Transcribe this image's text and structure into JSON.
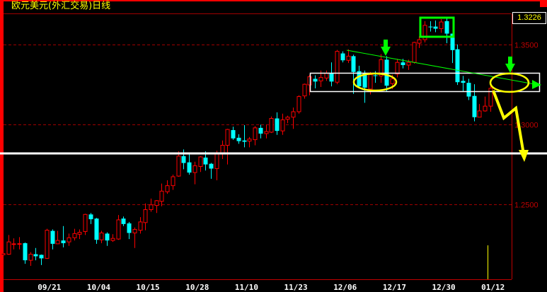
{
  "header": {
    "title": "欧元美元(外汇交易)日线",
    "last_price": "1.3226"
  },
  "colors": {
    "up": "#ff0000",
    "down": "#00ffff",
    "grid": "#a00000",
    "axis": "#c00000",
    "background": "#000000"
  },
  "chart_data": {
    "type": "candlestick",
    "title": "欧元美元(外汇交易)日线",
    "ylim": [
      1.203,
      1.369
    ],
    "y_ticks": [
      "1.3500",
      "1.3000",
      "1.2500"
    ],
    "y_tick_values": [
      1.35,
      1.3,
      1.25
    ],
    "grid": "horizontal dashed",
    "x_ticks": [
      "09/21",
      "10/04",
      "10/15",
      "10/28",
      "11/10",
      "11/23",
      "12/06",
      "12/17",
      "12/30",
      "01/12"
    ],
    "last_price": 1.3226,
    "ohlc": [
      [
        1.2183,
        1.2204,
        1.2149,
        1.2191
      ],
      [
        1.2187,
        1.2307,
        1.2183,
        1.2264
      ],
      [
        1.225,
        1.2286,
        1.2217,
        1.2252
      ],
      [
        1.225,
        1.2294,
        1.2217,
        1.2253
      ],
      [
        1.2256,
        1.226,
        1.2127,
        1.2149
      ],
      [
        1.2149,
        1.22,
        1.2114,
        1.2187
      ],
      [
        1.2187,
        1.2226,
        1.2149,
        1.2174
      ],
      [
        1.2183,
        1.2185,
        1.2119,
        1.2161
      ],
      [
        1.2161,
        1.2346,
        1.2157,
        1.2337
      ],
      [
        1.2333,
        1.2342,
        1.2217,
        1.2252
      ],
      [
        1.2252,
        1.2333,
        1.225,
        1.2273
      ],
      [
        1.2273,
        1.2363,
        1.223,
        1.2256
      ],
      [
        1.2264,
        1.2316,
        1.2239,
        1.229
      ],
      [
        1.229,
        1.2346,
        1.2273,
        1.2316
      ],
      [
        1.2312,
        1.2342,
        1.2282,
        1.2324
      ],
      [
        1.2329,
        1.244,
        1.2307,
        1.2436
      ],
      [
        1.2436,
        1.2445,
        1.2376,
        1.2406
      ],
      [
        1.241,
        1.2414,
        1.2252,
        1.2277
      ],
      [
        1.2277,
        1.2333,
        1.2256,
        1.232
      ],
      [
        1.2316,
        1.2324,
        1.2239,
        1.2273
      ],
      [
        1.2273,
        1.2312,
        1.2264,
        1.2286
      ],
      [
        1.2282,
        1.2432,
        1.2277,
        1.2402
      ],
      [
        1.241,
        1.2423,
        1.2363,
        1.2376
      ],
      [
        1.238,
        1.2389,
        1.2282,
        1.232
      ],
      [
        1.232,
        1.2354,
        1.2226,
        1.2342
      ],
      [
        1.2337,
        1.2419,
        1.2316,
        1.2389
      ],
      [
        1.2385,
        1.2505,
        1.2337,
        1.2466
      ],
      [
        1.2466,
        1.2535,
        1.2453,
        1.2496
      ],
      [
        1.2492,
        1.2526,
        1.2445,
        1.2522
      ],
      [
        1.2518,
        1.2629,
        1.2487,
        1.2582
      ],
      [
        1.2578,
        1.265,
        1.2565,
        1.2616
      ],
      [
        1.2616,
        1.2685,
        1.259,
        1.2672
      ],
      [
        1.2676,
        1.2831,
        1.2672,
        1.2801
      ],
      [
        1.2801,
        1.2843,
        1.2719,
        1.2758
      ],
      [
        1.2762,
        1.2813,
        1.2685,
        1.2698
      ],
      [
        1.2698,
        1.2766,
        1.2625,
        1.2741
      ],
      [
        1.2736,
        1.2801,
        1.2702,
        1.2796
      ],
      [
        1.2792,
        1.2831,
        1.2711,
        1.2749
      ],
      [
        1.2753,
        1.2758,
        1.2659,
        1.2723
      ],
      [
        1.2723,
        1.2835,
        1.265,
        1.2822
      ],
      [
        1.2818,
        1.2899,
        1.2783,
        1.2869
      ],
      [
        1.2869,
        1.2972,
        1.2749,
        1.2968
      ],
      [
        1.2964,
        1.2985,
        1.2903,
        1.2912
      ],
      [
        1.2916,
        1.2938,
        1.2878,
        1.2895
      ],
      [
        1.2899,
        1.2995,
        1.2856,
        1.2891
      ],
      [
        1.2895,
        1.2921,
        1.2856,
        1.2908
      ],
      [
        1.2904,
        1.2989,
        1.2869,
        1.2978
      ],
      [
        1.2978,
        1.2998,
        1.2912,
        1.2942
      ],
      [
        1.2942,
        1.2998,
        1.2912,
        1.2955
      ],
      [
        1.2951,
        1.3049,
        1.2946,
        1.3037
      ],
      [
        1.3037,
        1.3075,
        1.2934,
        1.2959
      ],
      [
        1.2959,
        1.3067,
        1.2934,
        1.3028
      ],
      [
        1.3032,
        1.3054,
        1.3007,
        1.3045
      ],
      [
        1.3045,
        1.3105,
        1.2972,
        1.3079
      ],
      [
        1.3079,
        1.3182,
        1.3067,
        1.3174
      ],
      [
        1.3178,
        1.3255,
        1.3161,
        1.3251
      ],
      [
        1.3247,
        1.3311,
        1.3182,
        1.3298
      ],
      [
        1.3285,
        1.3307,
        1.3225,
        1.3268
      ],
      [
        1.3272,
        1.3337,
        1.3234,
        1.3294
      ],
      [
        1.329,
        1.3337,
        1.3272,
        1.332
      ],
      [
        1.332,
        1.3388,
        1.3238,
        1.3268
      ],
      [
        1.3264,
        1.3466,
        1.3251,
        1.3457
      ],
      [
        1.3444,
        1.3457,
        1.3388,
        1.3401
      ],
      [
        1.3401,
        1.347,
        1.3384,
        1.3427
      ],
      [
        1.3427,
        1.3436,
        1.3191,
        1.3328
      ],
      [
        1.3333,
        1.3367,
        1.323,
        1.3238
      ],
      [
        1.332,
        1.3337,
        1.3135,
        1.323
      ],
      [
        1.3221,
        1.3328,
        1.3187,
        1.3311
      ],
      [
        1.3307,
        1.3333,
        1.326,
        1.3305
      ],
      [
        1.3303,
        1.344,
        1.326,
        1.3405
      ],
      [
        1.3405,
        1.3427,
        1.3204,
        1.3242
      ],
      [
        1.3255,
        1.3311,
        1.3221,
        1.3285
      ],
      [
        1.3315,
        1.341,
        1.3294,
        1.3388
      ],
      [
        1.3388,
        1.341,
        1.335,
        1.3371
      ],
      [
        1.3371,
        1.3405,
        1.3341,
        1.3388
      ],
      [
        1.3388,
        1.3517,
        1.338,
        1.3513
      ],
      [
        1.3508,
        1.3551,
        1.3478,
        1.353
      ],
      [
        1.353,
        1.3646,
        1.3513,
        1.362
      ],
      [
        1.3612,
        1.3646,
        1.3581,
        1.361
      ],
      [
        1.3612,
        1.365,
        1.3577,
        1.3599
      ],
      [
        1.3599,
        1.3659,
        1.3573,
        1.3641
      ],
      [
        1.3646,
        1.3667,
        1.3508,
        1.3568
      ],
      [
        1.3568,
        1.3568,
        1.3384,
        1.3465
      ],
      [
        1.347,
        1.35,
        1.3247,
        1.3264
      ],
      [
        1.3272,
        1.3303,
        1.3208,
        1.326
      ],
      [
        1.326,
        1.3285,
        1.3152,
        1.3174
      ],
      [
        1.3178,
        1.3251,
        1.3019,
        1.3045
      ],
      [
        1.3045,
        1.3127,
        1.3045,
        1.3084
      ],
      [
        1.3084,
        1.3174,
        1.3079,
        1.3114
      ],
      [
        1.3114,
        1.3242,
        1.3079,
        1.3226
      ]
    ]
  }
}
